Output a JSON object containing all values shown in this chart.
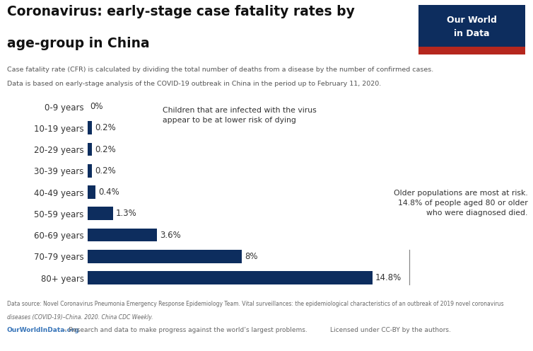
{
  "title_line1": "Coronavirus: early-stage case fatality rates by",
  "title_line2": "age-group in China",
  "subtitle_line1": "Case fatality rate (CFR) is calculated by dividing the total number of deaths from a disease by the number of confirmed cases.",
  "subtitle_line2": "Data is based on early-stage analysis of the COVID-19 outbreak in China in the period up to February 11, 2020.",
  "categories": [
    "0-9 years",
    "10-19 years",
    "20-29 years",
    "30-39 years",
    "40-49 years",
    "50-59 years",
    "60-69 years",
    "70-79 years",
    "80+ years"
  ],
  "values": [
    0,
    0.2,
    0.2,
    0.2,
    0.4,
    1.3,
    3.6,
    8.0,
    14.8
  ],
  "labels": [
    "0%",
    "0.2%",
    "0.2%",
    "0.2%",
    "0.4%",
    "1.3%",
    "3.6%",
    "8%",
    "14.8%"
  ],
  "bar_color": "#0d2d5e",
  "bg_color": "#ffffff",
  "annotation1_text": "Children that are infected with the virus\nappear to be at lower risk of dying",
  "annotation2_text": "Older populations are most at risk.\n14.8% of people aged 80 or older\nwho were diagnosed died.",
  "owid_box_color": "#0d2d5e",
  "owid_box_red": "#b5271e",
  "footer_source_normal": "Data source: Novel Coronavirus Pneumonia Emergency Response Epidemiology Team. ",
  "footer_source_italic": "Vital surveillances: the epidemiological characteristics of an outbreak of 2019 novel coronavirus",
  "footer_line2_italic": "diseases (COVID-19)–China.",
  "footer_line2_normal": " 2020. China CDC Weekly.",
  "footer_link": "OurWorldInData.org",
  "footer_link_rest": " – Research and data to make progress against the world’s largest problems.",
  "footer_right": "Licensed under CC-BY by the authors."
}
